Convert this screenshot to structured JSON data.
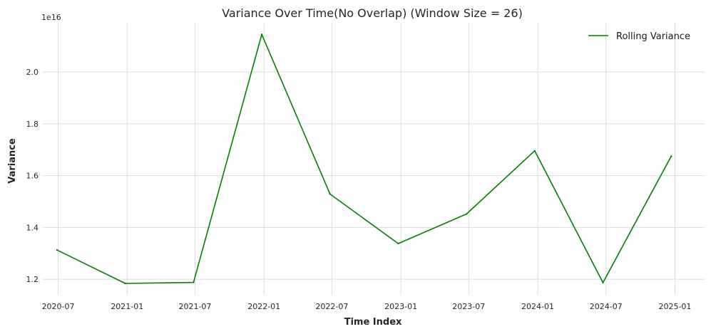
{
  "chart_data": {
    "type": "line",
    "title": "Variance Over Time(No Overlap) (Window Size = 26)",
    "xlabel": "Time Index",
    "ylabel": "Variance",
    "y_offset_text": "1e16",
    "y_scale_factor": 1e+16,
    "x_ticks": [
      "2020-07",
      "2021-01",
      "2021-07",
      "2022-01",
      "2022-07",
      "2023-01",
      "2023-07",
      "2024-01",
      "2024-07",
      "2025-01"
    ],
    "y_ticks": [
      "1.2",
      "1.4",
      "1.6",
      "1.8",
      "2.0"
    ],
    "xlim": [
      "2020-05-21",
      "2025-03-21"
    ],
    "ylim": [
      1.14,
      2.19
    ],
    "grid": true,
    "legend_position": "top-right",
    "series": [
      {
        "name": "Rolling Variance",
        "color": "#008000",
        "x": [
          "2020-06-28",
          "2020-12-27",
          "2021-06-27",
          "2021-12-26",
          "2022-06-26",
          "2022-12-25",
          "2023-06-25",
          "2023-12-24",
          "2024-06-23",
          "2024-12-22"
        ],
        "values": [
          1.313,
          1.184,
          1.188,
          2.145,
          1.529,
          1.338,
          1.452,
          1.696,
          1.187,
          1.675
        ]
      }
    ]
  }
}
